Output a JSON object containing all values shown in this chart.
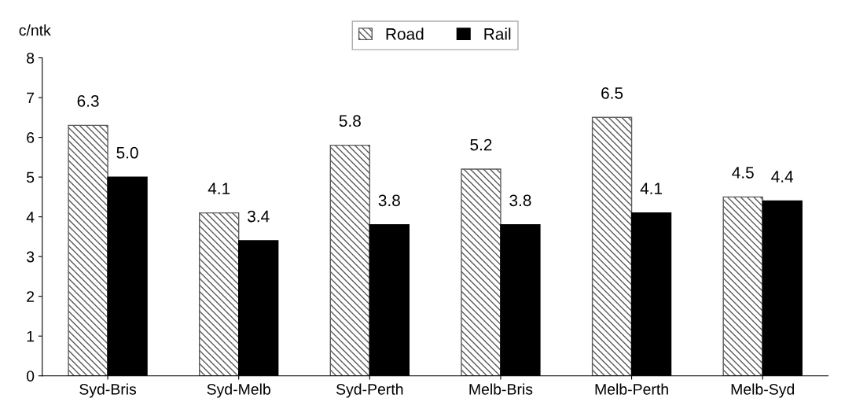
{
  "chart_data": {
    "type": "bar",
    "ylabel": "c/ntk",
    "categories": [
      "Syd-Bris",
      "Syd-Melb",
      "Syd-Perth",
      "Melb-Bris",
      "Melb-Perth",
      "Melb-Syd"
    ],
    "series": [
      {
        "name": "Road",
        "color": "#5a5a5a",
        "values": [
          6.3,
          4.1,
          5.8,
          5.2,
          6.5,
          4.5
        ],
        "value_labels": [
          "6.3",
          "4.1",
          "5.8",
          "5.2",
          "6.5",
          "4.5"
        ]
      },
      {
        "name": "Rail",
        "color": "#000000",
        "values": [
          5.0,
          3.4,
          3.8,
          3.8,
          4.1,
          4.4
        ],
        "value_labels": [
          "5.0",
          "3.4",
          "3.8",
          "3.8",
          "4.1",
          "4.4"
        ]
      }
    ],
    "ylim": [
      0,
      8
    ],
    "yticks": [
      0,
      1,
      2,
      3,
      4,
      5,
      6,
      7,
      8
    ],
    "legend": "top",
    "grid": false
  }
}
